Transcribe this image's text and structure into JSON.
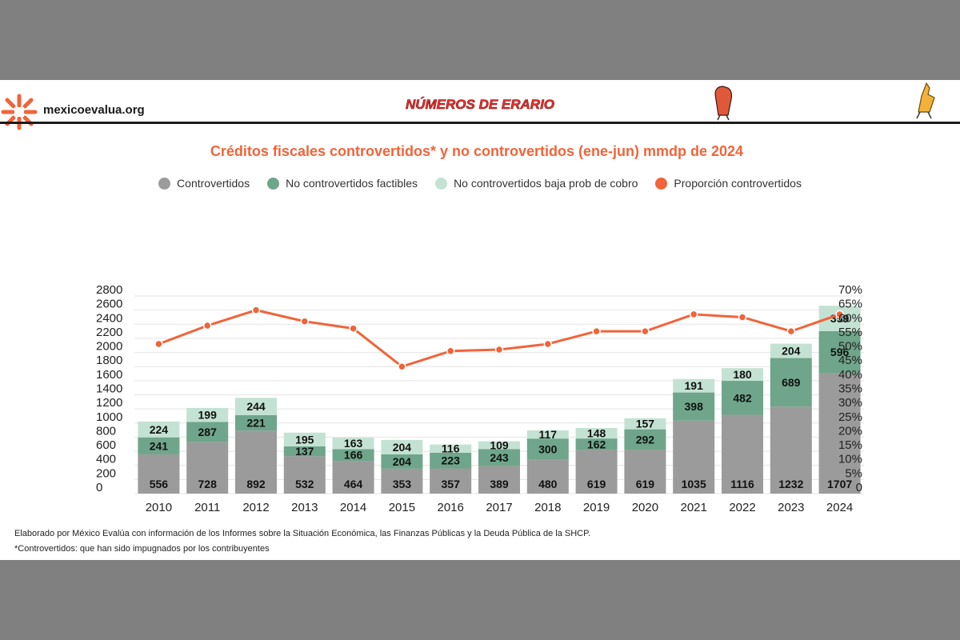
{
  "site": {
    "logo_text": "mexicoevalua.org",
    "brand_text": "NÚMEROS DE ERARIO"
  },
  "colors": {
    "controvertidos": "#9b9b9b",
    "factibles": "#6fa58a",
    "baja": "#c4e2d3",
    "line": "#f0643a",
    "title": "#f0643a"
  },
  "chart_data": {
    "type": "bar",
    "stacked": true,
    "title": "Créditos fiscales controvertidos* y no controvertidos (ene-jun) mmdp de 2024",
    "categories": [
      "2010",
      "2011",
      "2012",
      "2013",
      "2014",
      "2015",
      "2016",
      "2017",
      "2018",
      "2019",
      "2020",
      "2021",
      "2022",
      "2023",
      "2024"
    ],
    "series": [
      {
        "name": "Controvertidos",
        "values": [
          556,
          728,
          892,
          532,
          464,
          353,
          357,
          389,
          480,
          619,
          619,
          1035,
          1116,
          1232,
          1707
        ]
      },
      {
        "name": "No controvertidos factibles",
        "values": [
          241,
          287,
          221,
          137,
          166,
          204,
          223,
          243,
          300,
          162,
          292,
          398,
          482,
          689,
          596
        ]
      },
      {
        "name": "No controvertidos baja prob de cobro",
        "values": [
          224,
          199,
          244,
          195,
          163,
          204,
          116,
          109,
          117,
          148,
          157,
          191,
          180,
          204,
          359
        ]
      }
    ],
    "line_series": {
      "name": "Proporción controvertidos",
      "values": [
        53,
        59.5,
        65,
        61,
        58.5,
        45,
        50.5,
        51,
        53,
        57.5,
        57.5,
        63.5,
        62.5,
        57.5,
        63.5
      ]
    },
    "ylim": [
      0,
      2800
    ],
    "y_ticks": [
      "0",
      "200",
      "400",
      "600",
      "800",
      "1000",
      "1200",
      "1400",
      "1600",
      "1800",
      "2000",
      "2200",
      "2400",
      "2600",
      "2800"
    ],
    "y2lim": [
      0,
      70
    ],
    "y2_ticks": [
      "0",
      "5%",
      "10%",
      "15%",
      "20%",
      "25%",
      "30%",
      "35%",
      "40%",
      "45%",
      "50%",
      "55%",
      "60%",
      "65%",
      "70%"
    ],
    "grid": true,
    "legend_position": "top"
  },
  "notes": {
    "source": "Elaborado por México Evalúa con información de los Informes sobre la Situación Económica, las Finanzas Públicas y la Deuda Pública de la SHCP.",
    "footnote": "*Controvertidos: que han sido impugnados por los contribuyentes"
  }
}
